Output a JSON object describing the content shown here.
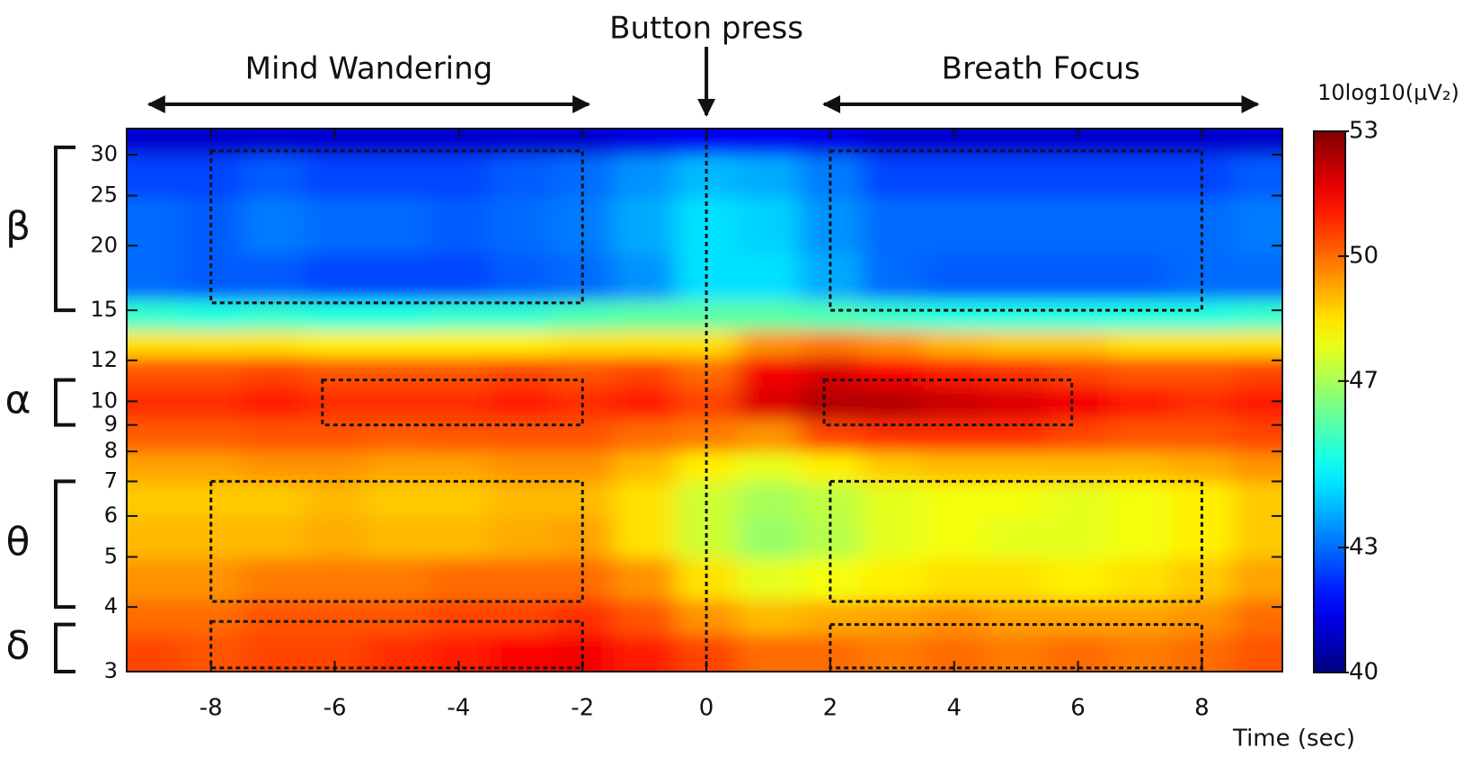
{
  "chart_data": {
    "type": "heatmap",
    "x_label": "Time (sec)",
    "colorbar_label": "10log10(μV₂)",
    "x": [
      -9,
      -8,
      -7,
      -6,
      -5,
      -4,
      -3,
      -2,
      -1,
      0,
      1,
      2,
      3,
      4,
      5,
      6,
      7,
      8,
      9
    ],
    "y": [
      3.3,
      3.8,
      4.5,
      5.5,
      6.5,
      7.5,
      8.5,
      10,
      11.5,
      13,
      14.5,
      17,
      22,
      28,
      32
    ],
    "z": [
      [
        50.5,
        50.3,
        50.5,
        50.5,
        50.8,
        51,
        51.3,
        51.5,
        51,
        50.5,
        50,
        50,
        49.8,
        50,
        49.8,
        50,
        49.8,
        50,
        50.3
      ],
      [
        50,
        50,
        50.3,
        50.3,
        50.3,
        50.5,
        50.5,
        50.8,
        50.3,
        49.5,
        49,
        49.2,
        49.3,
        49.5,
        49.3,
        49.3,
        49.3,
        49.5,
        50
      ],
      [
        49.5,
        49.5,
        49.8,
        49.8,
        49.8,
        50,
        50,
        50,
        49.5,
        48.5,
        47.8,
        48,
        48.3,
        48.5,
        48.5,
        48.3,
        48.5,
        48.8,
        49.3
      ],
      [
        49,
        49,
        49,
        49.2,
        49,
        49,
        49.2,
        49.3,
        48.5,
        47.5,
        46.8,
        47.2,
        47.8,
        48,
        47.8,
        47.8,
        48,
        48.3,
        48.8
      ],
      [
        48.8,
        48.8,
        48.8,
        49,
        48.8,
        48.8,
        49,
        49,
        48.5,
        47.5,
        47,
        47.3,
        47.8,
        48,
        48,
        47.8,
        48,
        48.3,
        48.8
      ],
      [
        49.3,
        49.3,
        49.5,
        49.5,
        49.3,
        49.3,
        49.5,
        49.5,
        49,
        48.3,
        47.8,
        48.3,
        48.8,
        49,
        49,
        49,
        49,
        49.2,
        49.5
      ],
      [
        50.2,
        50.2,
        50.3,
        50.3,
        50.2,
        50.3,
        50.3,
        50.3,
        50,
        49.8,
        49.5,
        50.5,
        50.8,
        50.8,
        50.8,
        50.5,
        50.3,
        50.3,
        50.5
      ],
      [
        50.8,
        50.8,
        51,
        50.8,
        50.8,
        50.8,
        51,
        50.8,
        51,
        50.5,
        51.8,
        52.3,
        52.3,
        52,
        51.8,
        51.5,
        51,
        50.8,
        51
      ],
      [
        50.3,
        50.3,
        50.5,
        50.3,
        50.3,
        50.3,
        50.5,
        50.3,
        50.5,
        50,
        51.5,
        51.8,
        51.3,
        51,
        50.8,
        50.5,
        50.3,
        50.3,
        50.5
      ],
      [
        48.5,
        48.5,
        48.5,
        48.3,
        48.3,
        48.3,
        48.3,
        48.5,
        48.5,
        48.5,
        49.5,
        49.8,
        49.5,
        49,
        48.8,
        48.8,
        48.5,
        48.5,
        48.5
      ],
      [
        45.5,
        45.3,
        45.5,
        45.3,
        45.3,
        45.5,
        45.5,
        45.8,
        46,
        46,
        46,
        45.8,
        45.5,
        45.3,
        45.3,
        45.3,
        45.3,
        45.3,
        45.5
      ],
      [
        43,
        42.8,
        42.8,
        42.5,
        42.5,
        42.5,
        42.8,
        43,
        43.5,
        44.5,
        44.5,
        43.8,
        43,
        42.8,
        42.8,
        42.8,
        42.8,
        43,
        43
      ],
      [
        43,
        42.8,
        43.2,
        43,
        43,
        42.8,
        43,
        43.2,
        43.8,
        44.5,
        44.3,
        43.5,
        43,
        43,
        43,
        43,
        43,
        43,
        43.2
      ],
      [
        42.5,
        42.5,
        42.8,
        42.5,
        42.5,
        42.5,
        42.8,
        43,
        43.5,
        44,
        43.8,
        43.2,
        42.5,
        42.5,
        42.5,
        42.5,
        42.5,
        42.5,
        42.8
      ],
      [
        41,
        41,
        41,
        41,
        41,
        41,
        41,
        41,
        41.3,
        41.5,
        41.5,
        41.3,
        41,
        41,
        41,
        41,
        41,
        41,
        41
      ]
    ],
    "xlim": [
      -9.36,
      9.3
    ],
    "ylim": [
      3,
      33.7
    ],
    "log_y": true,
    "xticks": [
      -8,
      -6,
      -4,
      -2,
      0,
      2,
      4,
      6,
      8
    ],
    "yticks": [
      3,
      4,
      5,
      6,
      7,
      8,
      9,
      10,
      12,
      15,
      20,
      25,
      30
    ],
    "clim": [
      40,
      53
    ],
    "cticks": [
      40,
      43,
      47,
      50,
      53
    ],
    "colormap": "jet",
    "annotations": [
      {
        "text": "Button press",
        "x": 0
      },
      {
        "text": "Mind Wandering",
        "x": [
          -9,
          -1.9
        ]
      },
      {
        "text": "Breath Focus",
        "x": [
          1.9,
          8.9
        ]
      }
    ],
    "bands": [
      {
        "label": "β",
        "range": [
          15,
          31
        ]
      },
      {
        "label": "α",
        "range": [
          9,
          11
        ]
      },
      {
        "label": "θ",
        "range": [
          4,
          7
        ]
      },
      {
        "label": "δ",
        "range": [
          3,
          3.7
        ]
      }
    ],
    "regions": [
      {
        "x": [
          -8,
          -2
        ],
        "y": [
          15.5,
          30.5
        ]
      },
      {
        "x": [
          -6.2,
          -2
        ],
        "y": [
          9,
          11
        ]
      },
      {
        "x": [
          -8,
          -2
        ],
        "y": [
          4.1,
          7
        ]
      },
      {
        "x": [
          -8,
          -2
        ],
        "y": [
          3.05,
          3.75
        ]
      },
      {
        "x": [
          2,
          8
        ],
        "y": [
          15,
          30.5
        ]
      },
      {
        "x": [
          1.9,
          5.9
        ],
        "y": [
          9,
          11
        ]
      },
      {
        "x": [
          2,
          8
        ],
        "y": [
          4.1,
          7
        ]
      },
      {
        "x": [
          2,
          8
        ],
        "y": [
          3.05,
          3.7
        ]
      }
    ]
  }
}
